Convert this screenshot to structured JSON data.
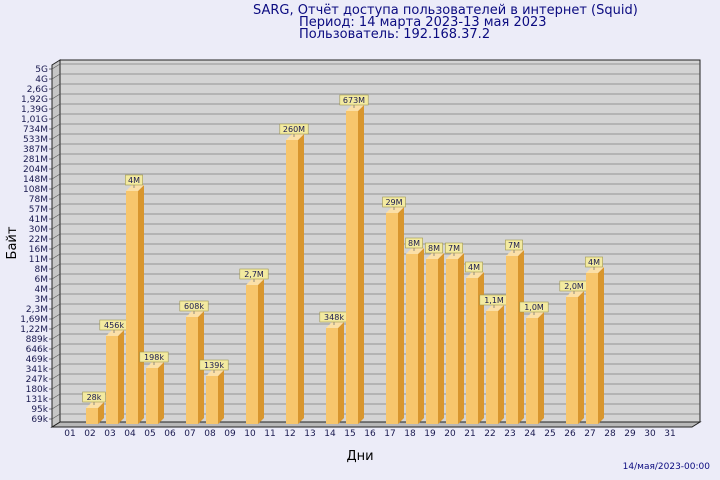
{
  "header": {
    "title": "SARG, Отчёт доступа пользователей в интернет (Squid)",
    "period": "Период: 14 марта 2023-13 мая 2023",
    "user": "Пользователь: 192.168.37.2"
  },
  "footer": {
    "timestamp": "14/мая/2023-00:00"
  },
  "colors": {
    "background": "#ececf8",
    "plot": "#d4d4d4",
    "bar_front": "#f7c66c",
    "bar_side": "#d8962e",
    "label_bg": "#f3eaa0",
    "title": "#0b0b80"
  },
  "chart_data": {
    "type": "bar",
    "title": "SARG, Отчёт доступа пользователей в интернет (Squid)",
    "xlabel": "Дни",
    "ylabel": "Байт",
    "y_scale": "log",
    "grid": true,
    "y_ticks": [
      "5G",
      "4G",
      "2,6G",
      "1,92G",
      "1,39G",
      "1,01G",
      "734M",
      "533M",
      "387M",
      "281M",
      "204M",
      "148M",
      "108M",
      "78M",
      "57M",
      "41M",
      "30M",
      "22M",
      "16M",
      "11M",
      "8M",
      "6M",
      "4M",
      "3M",
      "2,3M",
      "1,69M",
      "1,22M",
      "889k",
      "646k",
      "469k",
      "341k",
      "247k",
      "180k",
      "131k",
      "95k",
      "69k"
    ],
    "categories": [
      "01",
      "02",
      "03",
      "04",
      "05",
      "06",
      "07",
      "08",
      "09",
      "10",
      "11",
      "12",
      "13",
      "14",
      "15",
      "16",
      "17",
      "18",
      "19",
      "20",
      "21",
      "22",
      "23",
      "24",
      "25",
      "26",
      "27",
      "28",
      "29",
      "30",
      "31"
    ],
    "values": [
      null,
      28000,
      456000,
      4000000,
      198000,
      null,
      608000,
      139000,
      null,
      2700000,
      null,
      260000000,
      null,
      348000,
      673000000,
      null,
      29000000,
      8000000,
      8000000,
      7000000,
      4000000,
      1100000,
      7000000,
      1000000,
      null,
      2000000,
      4000000,
      null,
      null,
      null,
      null
    ],
    "labels": [
      null,
      "28k",
      "456k",
      "4M",
      "198k",
      null,
      "608k",
      "139k",
      null,
      "2,7M",
      null,
      "260M",
      null,
      "348k",
      "673M",
      null,
      "29M",
      "8M",
      "8M",
      "7M",
      "4M",
      "1,1M",
      "7M",
      "1,0M",
      null,
      "2,0M",
      "4M",
      null,
      null,
      null,
      null
    ],
    "bar_levels": [
      null,
      0.4,
      7.6,
      22.1,
      4.4,
      null,
      9.5,
      3.6,
      null,
      12.7,
      null,
      27.2,
      null,
      8.4,
      30.1,
      null,
      19.9,
      15.8,
      15.3,
      15.3,
      13.4,
      10.1,
      15.6,
      9.4,
      null,
      11.5,
      13.9,
      null,
      null,
      null,
      null
    ]
  }
}
